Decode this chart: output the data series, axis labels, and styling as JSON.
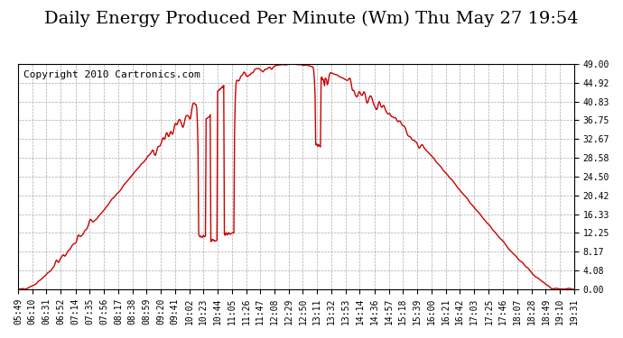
{
  "title": "Daily Energy Produced Per Minute (Wm) Thu May 27 19:54",
  "copyright": "Copyright 2010 Cartronics.com",
  "title_fontsize": 14,
  "copyright_fontsize": 8,
  "bg_color": "#ffffff",
  "plot_bg_color": "#ffffff",
  "line_color": "#cc0000",
  "line_width": 1.0,
  "ylim": [
    0,
    49.0
  ],
  "yticks": [
    0.0,
    4.08,
    8.17,
    12.25,
    16.33,
    20.42,
    24.5,
    28.58,
    32.67,
    36.75,
    40.83,
    44.92,
    49.0
  ],
  "ytick_labels": [
    "0.00",
    "4.08",
    "8.17",
    "12.25",
    "16.33",
    "20.42",
    "24.50",
    "28.58",
    "32.67",
    "36.75",
    "40.83",
    "44.92",
    "49.00"
  ],
  "xtick_labels": [
    "05:49",
    "06:10",
    "06:31",
    "06:52",
    "07:14",
    "07:35",
    "07:56",
    "08:17",
    "08:38",
    "08:59",
    "09:20",
    "09:41",
    "10:02",
    "10:23",
    "10:44",
    "11:05",
    "11:26",
    "11:47",
    "12:08",
    "12:29",
    "12:50",
    "13:11",
    "13:32",
    "13:53",
    "14:14",
    "14:36",
    "14:57",
    "15:18",
    "15:39",
    "16:00",
    "16:21",
    "16:42",
    "17:03",
    "17:25",
    "17:46",
    "18:07",
    "18:28",
    "18:49",
    "19:10",
    "19:31"
  ],
  "grid_color": "#aaaaaa",
  "grid_linestyle": "--",
  "tick_fontsize": 7,
  "ylabel_right": true
}
